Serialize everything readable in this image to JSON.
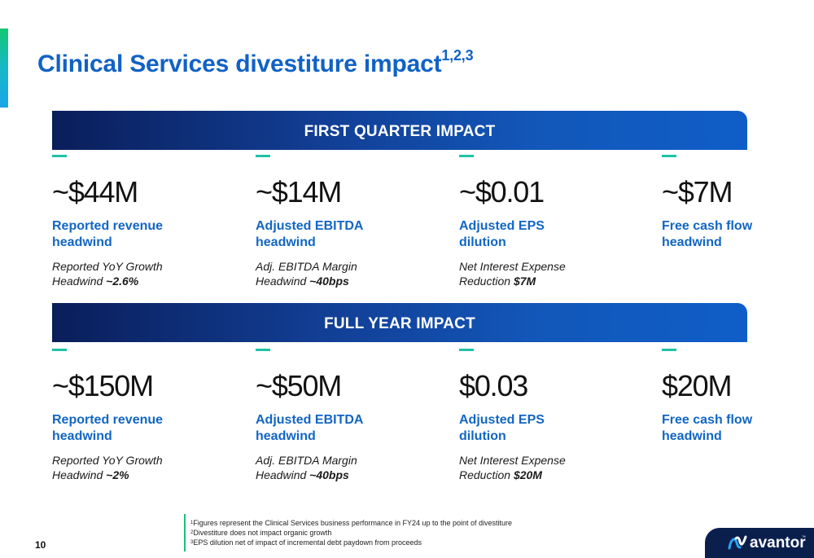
{
  "title": {
    "text": "Clinical Services divestiture impact",
    "superscript": "1,2,3"
  },
  "first_quarter": {
    "heading": "FIRST QUARTER IMPACT",
    "metrics": [
      {
        "value": "~$44M",
        "label_1": "Reported revenue",
        "label_2": "headwind",
        "note_1": "Reported YoY Growth",
        "note_2_prefix": "Headwind ",
        "note_2_bold": "~2.6%"
      },
      {
        "value": "~$14M",
        "label_1": "Adjusted EBITDA",
        "label_2": "headwind",
        "note_1": "Adj. EBITDA Margin",
        "note_2_prefix": "Headwind ",
        "note_2_bold": "~40bps"
      },
      {
        "value": "~$0.01",
        "label_1": "Adjusted EPS",
        "label_2": "dilution",
        "note_1": "Net Interest Expense",
        "note_2_prefix": "Reduction ",
        "note_2_bold": "$7M"
      },
      {
        "value": "~$7M",
        "label_1": "Free cash flow",
        "label_2": "headwind"
      }
    ]
  },
  "full_year": {
    "heading": "FULL YEAR IMPACT",
    "metrics": [
      {
        "value": "~$150M",
        "label_1": "Reported revenue",
        "label_2": "headwind",
        "note_1": "Reported YoY Growth",
        "note_2_prefix": "Headwind ",
        "note_2_bold": "~2%"
      },
      {
        "value": "~$50M",
        "label_1": "Adjusted EBITDA",
        "label_2": "headwind",
        "note_1": "Adj. EBITDA Margin",
        "note_2_prefix": "Headwind ",
        "note_2_bold": "~40bps"
      },
      {
        "value": "$0.03",
        "label_1": "Adjusted EPS",
        "label_2": "dilution",
        "note_1": "Net Interest Expense",
        "note_2_prefix": "Reduction ",
        "note_2_bold": "$20M"
      },
      {
        "value": "$20M",
        "label_1": "Free cash flow",
        "label_2": "headwind"
      }
    ]
  },
  "footnotes": [
    {
      "num": "1",
      "text": "Figures represent the Clinical Services business performance in FY24 up to the point of divestiture"
    },
    {
      "num": "2",
      "text": "Divestiture does not impact organic growth"
    },
    {
      "num": "3",
      "text": "EPS dilution net of impact of incremental debt paydown from proceeds"
    }
  ],
  "page_number": "10",
  "logo": {
    "text": "avantor",
    "tm": "™"
  },
  "colors": {
    "title_blue": "#1162c5",
    "banner_navy": "#0a1e5a",
    "banner_blue": "#0f5ec8",
    "dash_teal": "#1ec2a6",
    "accent_green": "#12c872"
  }
}
